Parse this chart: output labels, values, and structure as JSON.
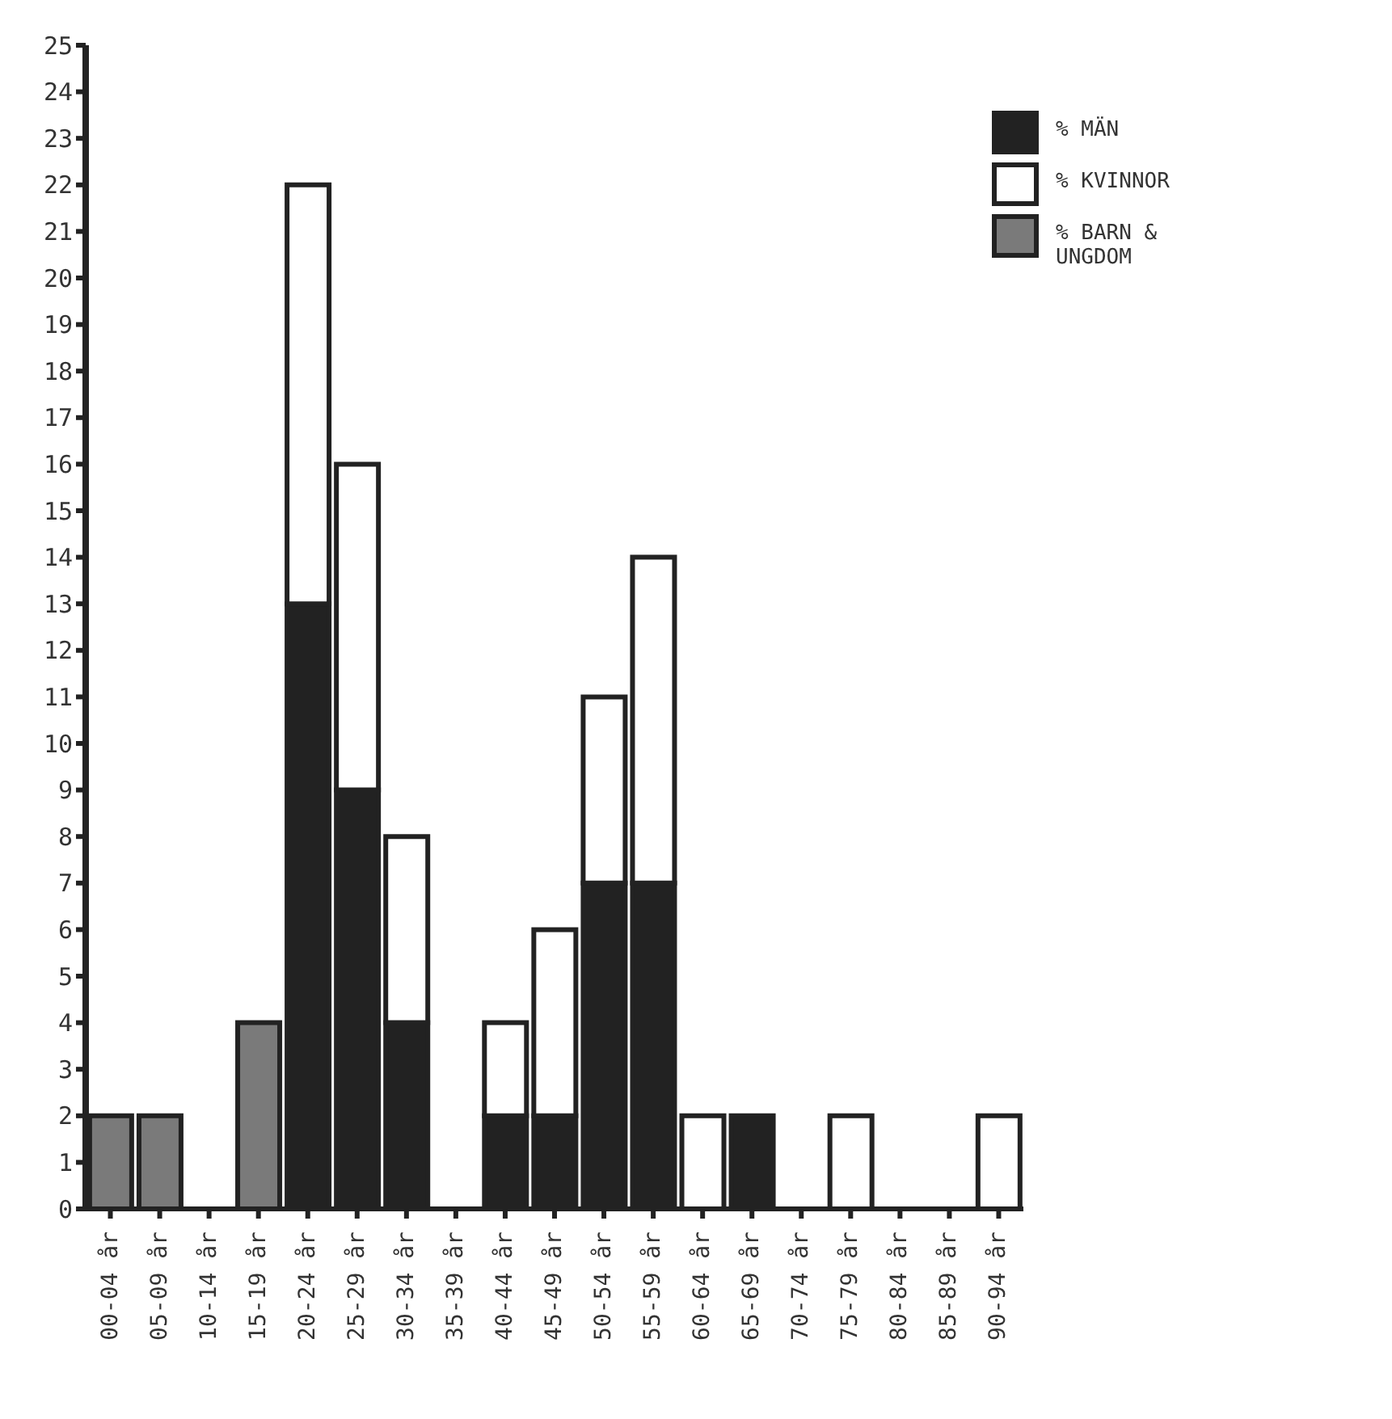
{
  "chart_data": {
    "type": "bar",
    "stacked": true,
    "categories": [
      "00-04 år",
      "05-09 år",
      "10-14 år",
      "15-19 år",
      "20-24 år",
      "25-29 år",
      "30-34 år",
      "35-39 år",
      "40-44 år",
      "45-49 år",
      "50-54 år",
      "55-59 år",
      "60-64 år",
      "65-69 år",
      "70-74 år",
      "75-79 år",
      "80-84 år",
      "85-89 år",
      "90-94 år"
    ],
    "series": [
      {
        "name": "% MÄN",
        "color": "#222222",
        "values": [
          0,
          0,
          0,
          0,
          13,
          9,
          4,
          0,
          2,
          2,
          7,
          7,
          0,
          2,
          0,
          0,
          0,
          0,
          0
        ]
      },
      {
        "name": "% KVINNOR",
        "color": "#ffffff",
        "values": [
          0,
          0,
          0,
          0,
          9,
          7,
          4,
          0,
          2,
          4,
          4,
          7,
          2,
          0,
          0,
          2,
          0,
          0,
          2
        ]
      },
      {
        "name": "% BARN & UNGDOM",
        "color": "#7a7a7a",
        "values": [
          2,
          2,
          0,
          4,
          0,
          0,
          0,
          0,
          0,
          0,
          0,
          0,
          0,
          0,
          0,
          0,
          0,
          0,
          0
        ]
      }
    ],
    "ylim": [
      0,
      25
    ],
    "yticks": [
      0,
      1,
      2,
      3,
      4,
      5,
      6,
      7,
      8,
      9,
      10,
      11,
      12,
      13,
      14,
      15,
      16,
      17,
      18,
      19,
      20,
      21,
      22,
      23,
      24,
      25
    ],
    "legend": "top right"
  }
}
